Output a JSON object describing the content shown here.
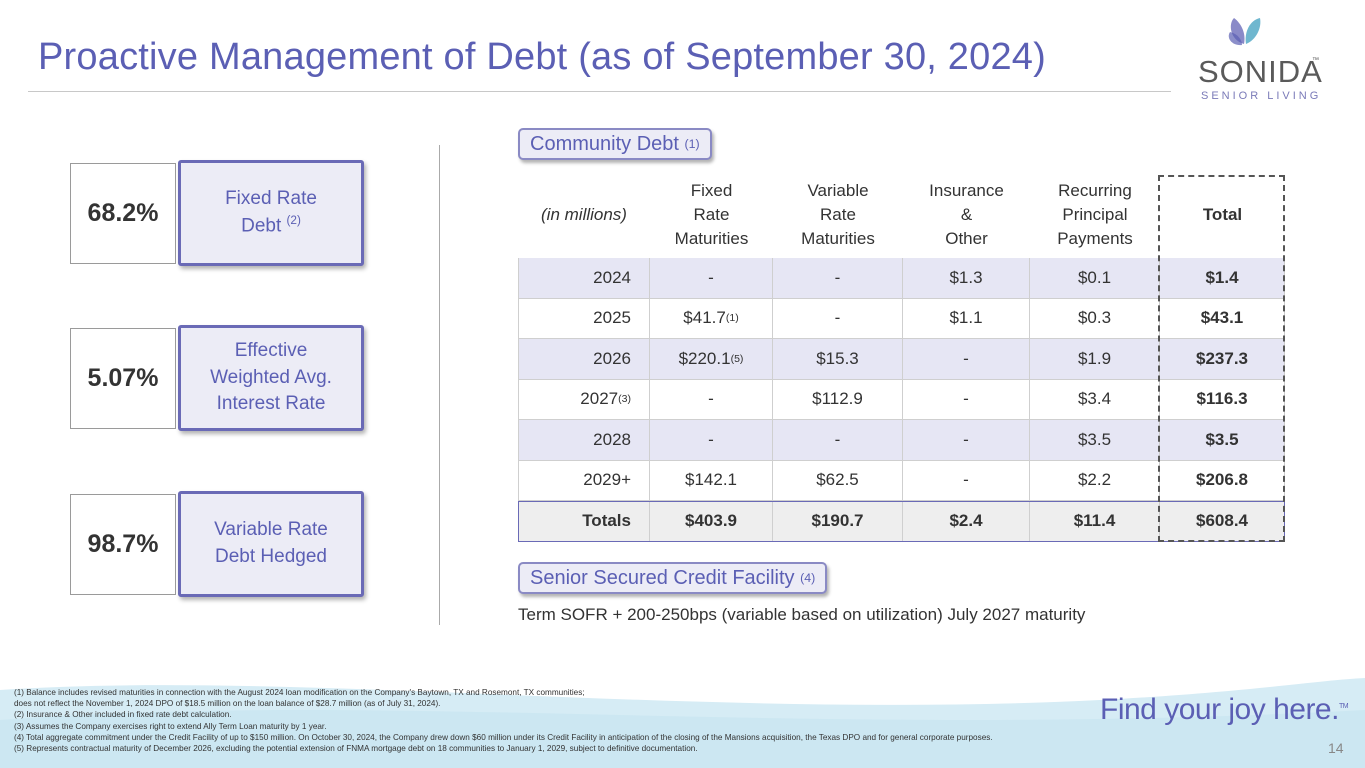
{
  "title": "Proactive Management of Debt (as of September 30, 2024)",
  "logo": {
    "name": "SONIDA",
    "tm": "™",
    "tagline": "SENIOR LIVING"
  },
  "stats": [
    {
      "value": "68.2%",
      "label": [
        "Fixed Rate",
        "Debt"
      ],
      "note": "(2)"
    },
    {
      "value": "5.07%",
      "label": [
        "Effective",
        "Weighted Avg.",
        "Interest Rate"
      ]
    },
    {
      "value": "98.7%",
      "label": [
        "Variable Rate",
        "Debt Hedged"
      ]
    }
  ],
  "community_debt": {
    "heading": "Community Debt",
    "note": "(1)",
    "header": [
      [
        "(in millions)"
      ],
      [
        "Fixed",
        "Rate",
        "Maturities"
      ],
      [
        "Variable",
        "Rate",
        "Maturities"
      ],
      [
        "Insurance",
        "&",
        "Other"
      ],
      [
        "Recurring",
        "Principal",
        "Payments"
      ],
      [
        "Total"
      ]
    ],
    "rows": [
      [
        "2024",
        "-",
        "-",
        "$1.3",
        "$0.1",
        "$1.4"
      ],
      [
        "2025",
        {
          "text": "$41.7 ",
          "sup": "(1)"
        },
        "-",
        "$1.1",
        "$0.3",
        "$43.1"
      ],
      [
        "2026",
        {
          "text": "$220.1",
          "sup": "(5)"
        },
        "$15.3",
        "-",
        "$1.9",
        "$237.3"
      ],
      [
        {
          "text": "2027",
          "sup": "(3)"
        },
        "-",
        "$112.9",
        "-",
        "$3.4",
        "$116.3"
      ],
      [
        "2028",
        "-",
        "-",
        "-",
        "$3.5",
        "$3.5"
      ],
      [
        "2029+",
        "$142.1",
        "$62.5",
        "-",
        "$2.2",
        "$206.8"
      ]
    ],
    "totals": [
      "Totals",
      "$403.9",
      "$190.7",
      "$2.4",
      "$11.4",
      "$608.4"
    ]
  },
  "credit_facility": {
    "heading": "Senior Secured Credit Facility",
    "note": "(4)",
    "text": "Term SOFR + 200-250bps (variable based on utilization) July 2027 maturity"
  },
  "footnotes": [
    "(1) Balance includes revised maturities in connection with the August 2024 loan modification on the Company's Baytown, TX and Rosemont, TX communities;",
    "does not reflect the November 1, 2024 DPO of $18.5 million on the loan balance of $28.7 million (as of July 31, 2024).",
    "(2) Insurance & Other included in fixed rate debt calculation.",
    "(3) Assumes the Company exercises right to extend Ally Term Loan maturity by 1 year.",
    "(4) Total aggregate commitment under the Credit Facility of up to $150 million. On October 30, 2024, the Company drew down $60 million under its Credit Facility in anticipation of the closing of the Mansions acquisition, the Texas DPO and for general corporate purposes.",
    "(5) Represents contractual maturity of December 2026, excluding the potential extension of FNMA mortgage debt on 18 communities to January 1, 2029, subject to definitive documentation."
  ],
  "slogan": "Find your joy here.",
  "slogan_tm": "TM",
  "page_number": "14"
}
